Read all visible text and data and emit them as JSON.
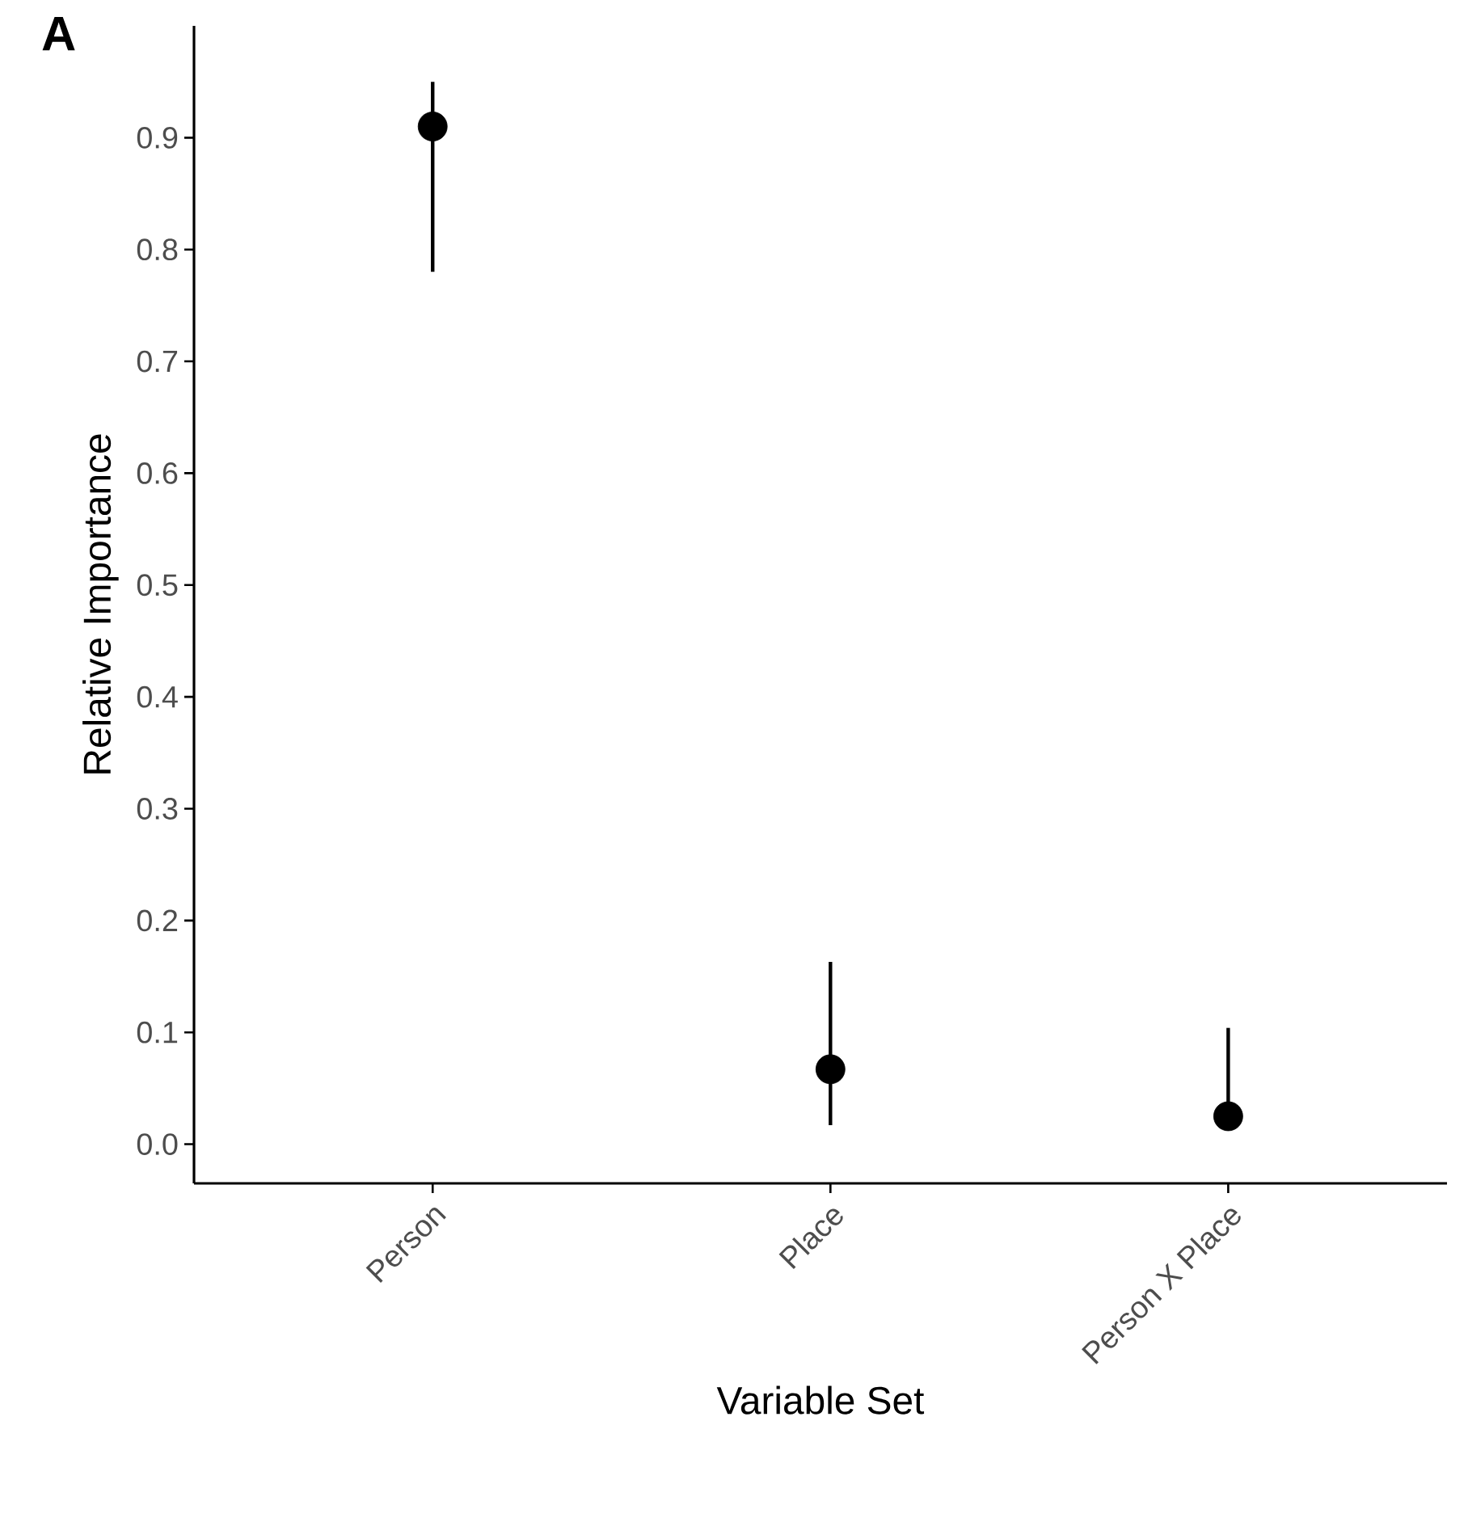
{
  "chart_data": {
    "type": "scatter",
    "title": "A",
    "xlabel": "Variable Set",
    "ylabel": "Relative Importance",
    "categories": [
      "Person",
      "Place",
      "Person X Place"
    ],
    "values": [
      0.91,
      0.067,
      0.025
    ],
    "errors": [
      [
        0.78,
        0.95
      ],
      [
        0.017,
        0.163
      ],
      [
        0.025,
        0.104
      ]
    ],
    "color": "#000000",
    "marker": "circle",
    "ylim": [
      -0.035,
      1.0
    ],
    "yticks": [
      {
        "value": 0.0,
        "label": "0.0"
      },
      0.1,
      0.2,
      0.3,
      0.4,
      0.5,
      0.6,
      0.7,
      0.8,
      0.9
    ],
    "grid": false
  }
}
